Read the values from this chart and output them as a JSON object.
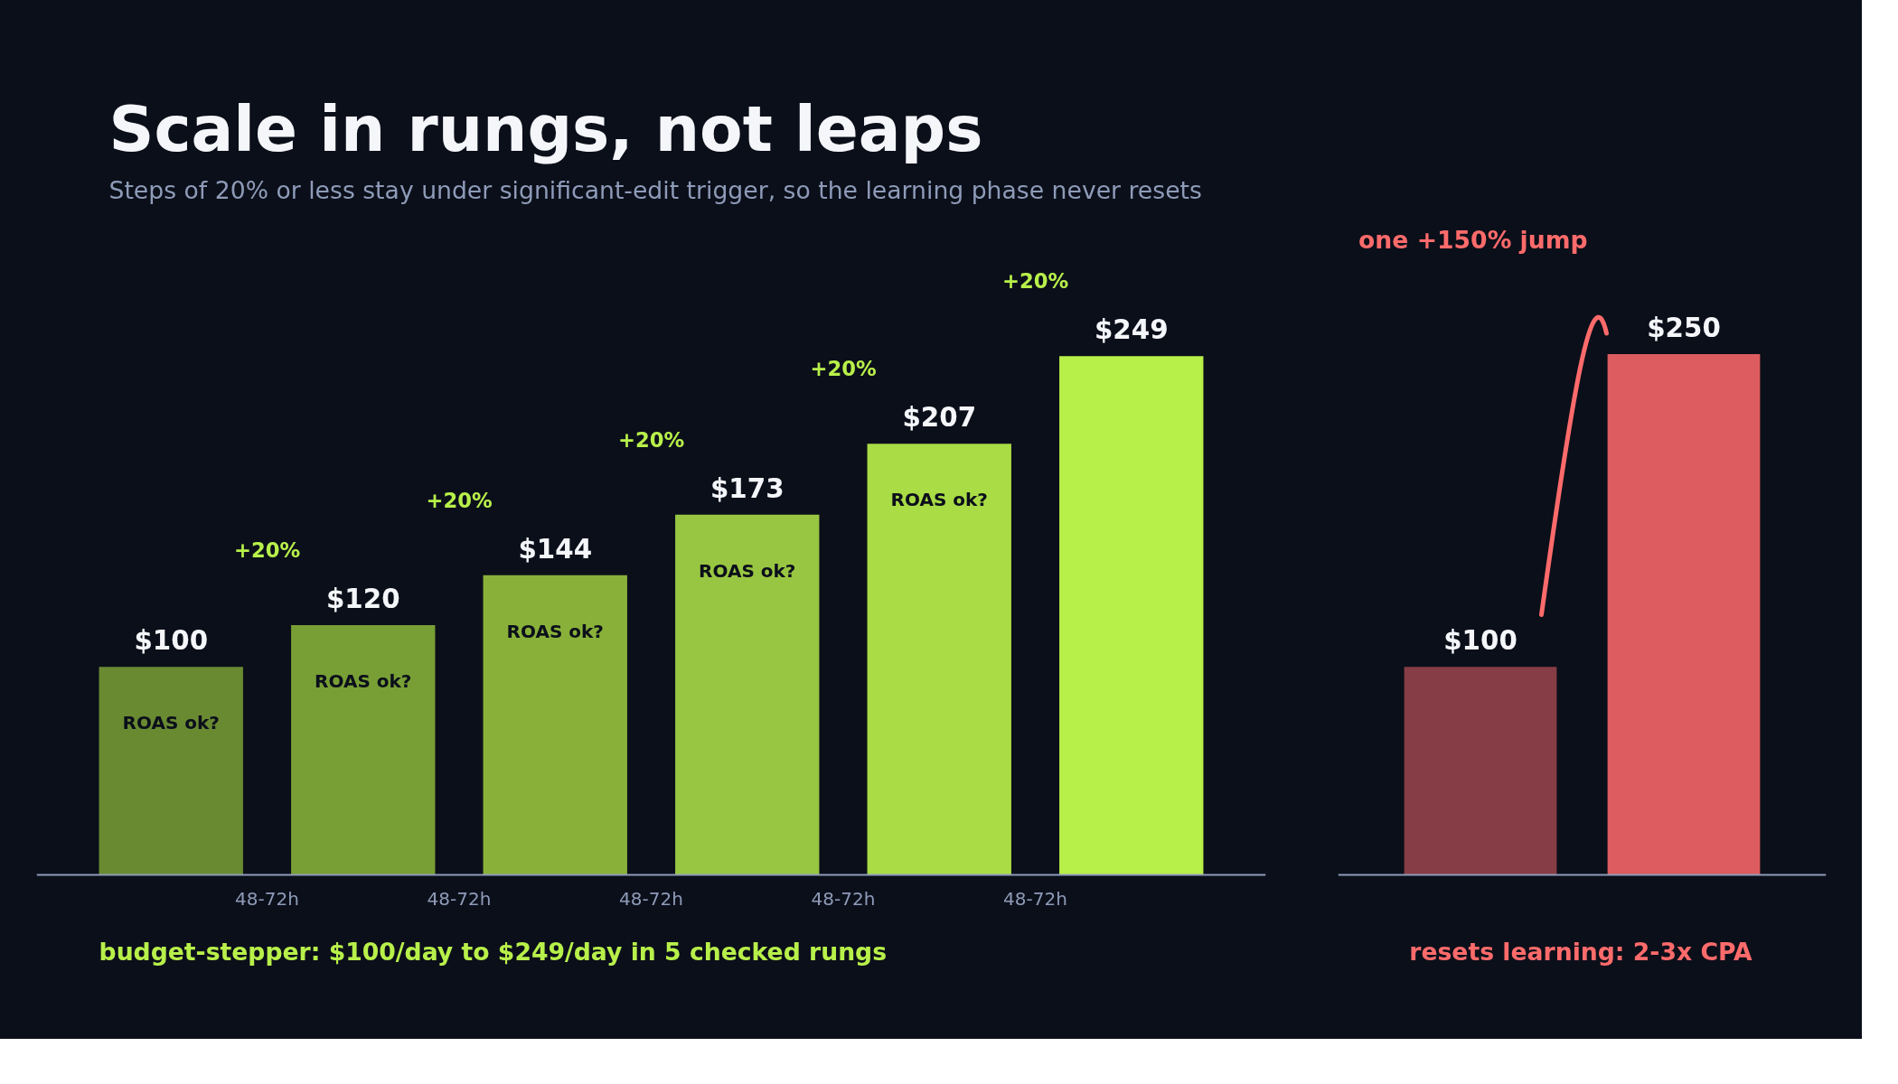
{
  "chart_data": [
    {
      "type": "bar",
      "title": "Scale in rungs, not leaps",
      "subtitle": "Steps of 20% or less stay under significant-edit trigger, so the learning phase never resets",
      "categories": [
        null,
        null,
        null,
        null,
        null,
        null
      ],
      "values": [
        100,
        120,
        144,
        173,
        207,
        249
      ],
      "colors": [
        "#6a8a32",
        "#789f35",
        "#89b13a",
        "#99c642",
        "#a9dc45",
        "#b8f04a"
      ],
      "value_labels": [
        "$100",
        "$120",
        "$144",
        "$173",
        "$207",
        "$249"
      ],
      "tick_labels": false,
      "grid": false,
      "annotations": [
        "+20%",
        "+20%",
        "+20%",
        "+20%",
        "+20%",
        "48-72h",
        "48-72h",
        "48-72h",
        "48-72h",
        "48-72h",
        "ROAS ok?",
        "ROAS ok?",
        "ROAS ok?",
        "ROAS ok?",
        "ROAS ok?",
        "budget-stepper: $100/day to $249/day in 5 checked rungs"
      ]
    },
    {
      "type": "bar",
      "categories": [
        null,
        null
      ],
      "values": [
        100,
        250
      ],
      "colors": [
        "#873d45",
        "#dc5c5f"
      ],
      "value_labels": [
        "$100",
        "$250"
      ],
      "tick_labels": false,
      "grid": false,
      "annotations": [
        "one +150% jump",
        "resets learning: 2-3x CPA"
      ]
    }
  ]
}
